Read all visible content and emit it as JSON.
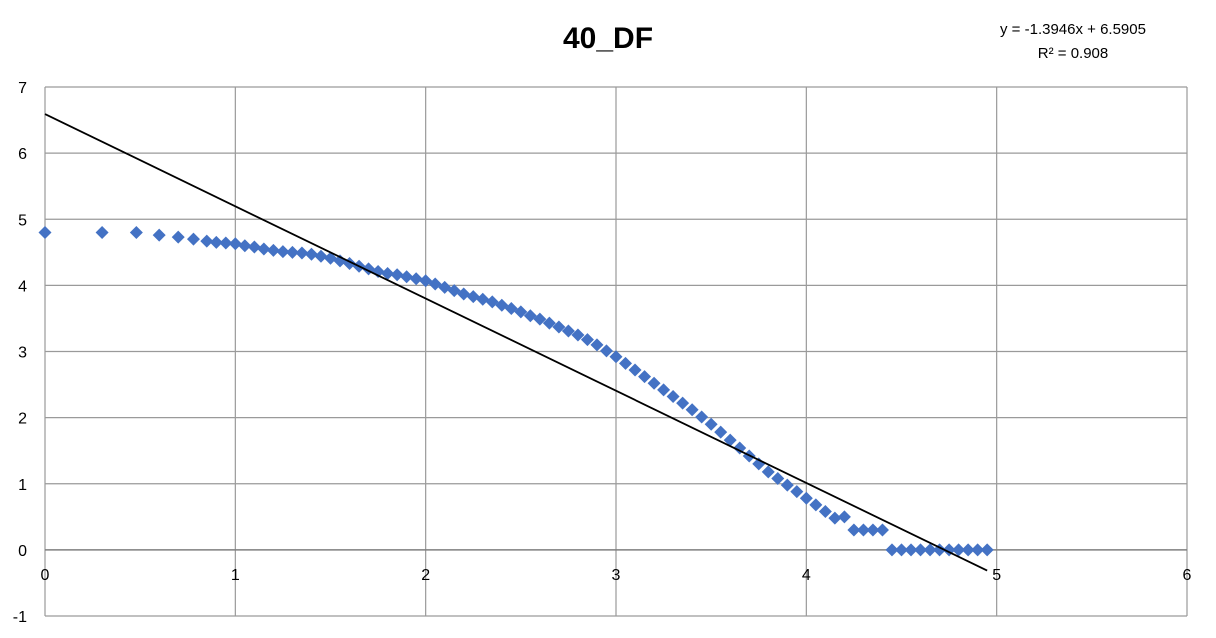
{
  "chart_data": {
    "type": "scatter",
    "title": "40_DF",
    "xlabel": "",
    "ylabel": "",
    "xlim": [
      0,
      6
    ],
    "ylim": [
      -1,
      7
    ],
    "x_ticks": [
      "0",
      "1",
      "2",
      "3",
      "4",
      "5",
      "6"
    ],
    "y_ticks": [
      "-1",
      "0",
      "1",
      "2",
      "3",
      "4",
      "5",
      "6",
      "7"
    ],
    "grid": true,
    "marker": "diamond",
    "marker_color": "#4472C4",
    "trendline": {
      "type": "linear",
      "slope": -1.3946,
      "intercept": 6.5905,
      "equation_label": "y = -1.3946x + 6.5905",
      "r2_label": "R² = 0.908",
      "x_range": [
        0,
        4.95
      ],
      "color": "#000000"
    },
    "series": [
      {
        "x": [
          0,
          0.3,
          0.48,
          0.6,
          0.7,
          0.78,
          0.85,
          0.9,
          0.95,
          1.0,
          1.05,
          1.1,
          1.15,
          1.2,
          1.25,
          1.3,
          1.35,
          1.4,
          1.45,
          1.5,
          1.55,
          1.6,
          1.65,
          1.7,
          1.75,
          1.8,
          1.85,
          1.9,
          1.95,
          2.0,
          2.05,
          2.1,
          2.15,
          2.2,
          2.25,
          2.3,
          2.35,
          2.4,
          2.45,
          2.5,
          2.55,
          2.6,
          2.65,
          2.7,
          2.75,
          2.8,
          2.85,
          2.9,
          2.95,
          3.0,
          3.05,
          3.1,
          3.15,
          3.2,
          3.25,
          3.3,
          3.35,
          3.4,
          3.45,
          3.5,
          3.55,
          3.6,
          3.65,
          3.7,
          3.75,
          3.8,
          3.85,
          3.9,
          3.95,
          4.0,
          4.05,
          4.1,
          4.15,
          4.2,
          4.25,
          4.3,
          4.35,
          4.4,
          4.45,
          4.5,
          4.55,
          4.6,
          4.65,
          4.7,
          4.75,
          4.8,
          4.85,
          4.9,
          4.95
        ],
        "y": [
          4.8,
          4.8,
          4.8,
          4.76,
          4.73,
          4.7,
          4.67,
          4.65,
          4.64,
          4.63,
          4.6,
          4.58,
          4.55,
          4.53,
          4.51,
          4.5,
          4.49,
          4.47,
          4.44,
          4.41,
          4.37,
          4.33,
          4.29,
          4.25,
          4.21,
          4.18,
          4.16,
          4.13,
          4.1,
          4.07,
          4.02,
          3.97,
          3.92,
          3.87,
          3.83,
          3.79,
          3.75,
          3.7,
          3.65,
          3.6,
          3.54,
          3.49,
          3.43,
          3.37,
          3.31,
          3.25,
          3.18,
          3.1,
          3.01,
          2.92,
          2.82,
          2.72,
          2.62,
          2.52,
          2.42,
          2.32,
          2.22,
          2.12,
          2.01,
          1.9,
          1.78,
          1.66,
          1.54,
          1.42,
          1.3,
          1.18,
          1.08,
          0.98,
          0.88,
          0.78,
          0.68,
          0.58,
          0.48,
          0.5,
          0.3,
          0.3,
          0.3,
          0.3,
          0.0,
          0.0,
          0.0,
          0.0,
          0.0,
          0.0,
          0.0,
          0.0,
          0.0,
          0.0,
          0.0
        ]
      }
    ]
  }
}
